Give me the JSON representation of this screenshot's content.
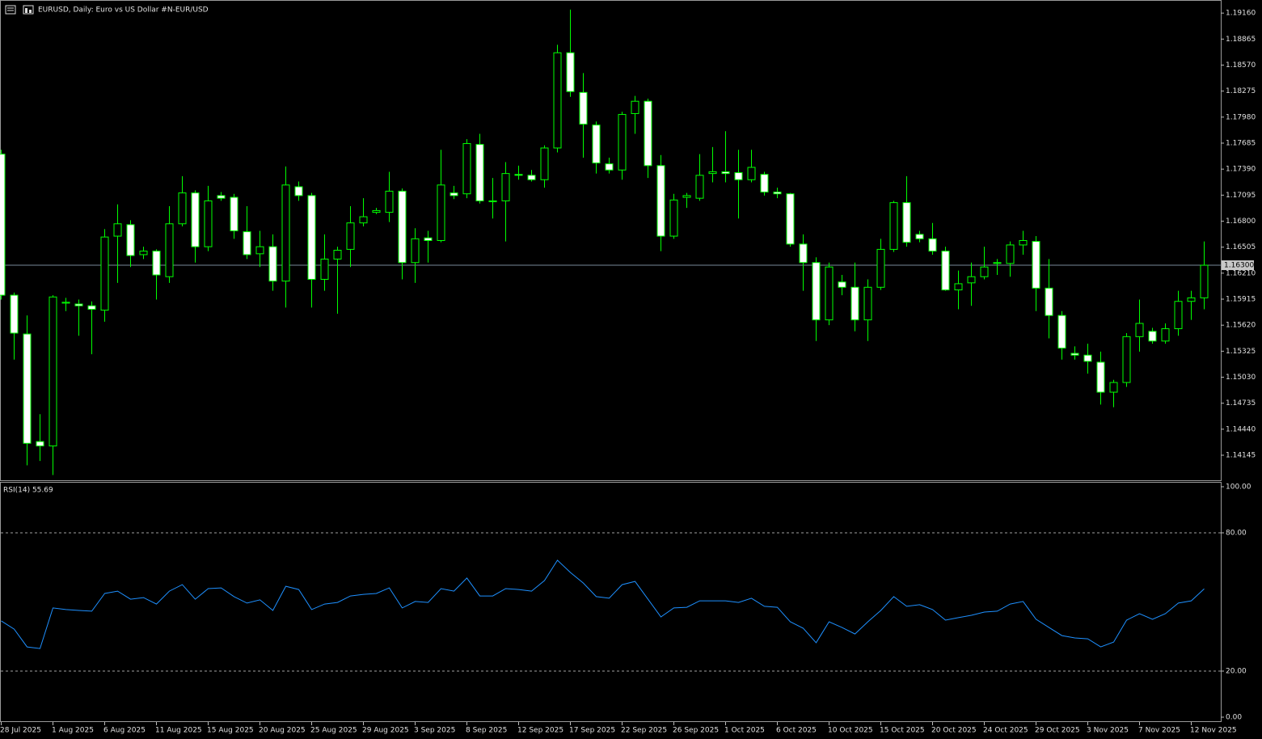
{
  "chart_data": [
    {
      "type": "candlestick",
      "title": "EURUSD, Daily:  Euro vs US Dollar #N-EUR/USD",
      "categories": [
        "28 Jul 2025",
        null,
        null,
        null,
        "1 Aug 2025",
        null,
        null,
        null,
        "6 Aug 2025",
        null,
        null,
        null,
        "11 Aug 2025",
        null,
        null,
        null,
        "15 Aug 2025",
        null,
        null,
        null,
        "20 Aug 2025",
        null,
        null,
        null,
        "25 Aug 2025",
        null,
        null,
        null,
        "29 Aug 2025",
        null,
        null,
        null,
        "3 Sep 2025",
        null,
        null,
        null,
        "8 Sep 2025",
        null,
        null,
        null,
        "12 Sep 2025",
        null,
        null,
        null,
        "17 Sep 2025",
        null,
        null,
        null,
        "22 Sep 2025",
        null,
        null,
        null,
        "26 Sep 2025",
        null,
        null,
        null,
        "1 Oct 2025",
        null,
        null,
        null,
        "6 Oct 2025",
        null,
        null,
        null,
        "10 Oct 2025",
        null,
        null,
        null,
        "15 Oct 2025",
        null,
        null,
        null,
        "20 Oct 2025",
        null,
        null,
        null,
        "24 Oct 2025",
        null,
        null,
        null,
        "29 Oct 2025",
        null,
        null,
        null,
        "3 Nov 2025",
        null,
        null,
        null,
        "7 Nov 2025",
        null,
        null,
        null,
        "12 Nov 2025",
        null
      ],
      "open": [
        1.1756,
        1.1596,
        1.1552,
        1.143,
        1.1425,
        1.1587,
        1.1586,
        1.1584,
        1.1579,
        1.1663,
        1.1676,
        1.1642,
        1.1646,
        1.1617,
        1.1677,
        1.1712,
        1.1651,
        1.1709,
        1.1707,
        1.1668,
        1.1643,
        1.1651,
        1.1612,
        1.1719,
        1.1709,
        1.1614,
        1.1637,
        1.1648,
        1.1678,
        1.169,
        1.169,
        1.1714,
        1.1633,
        1.1661,
        1.1658,
        1.1712,
        1.1711,
        1.1767,
        1.1702,
        1.1703,
        1.1733,
        1.1732,
        1.1727,
        1.1763,
        1.1871,
        1.1826,
        1.1789,
        1.1745,
        1.1738,
        1.1802,
        1.1816,
        1.1743,
        1.1663,
        1.1707,
        1.1706,
        1.1734,
        1.1736,
        1.1735,
        1.1727,
        1.1733,
        1.1713,
        1.1711,
        1.1654,
        1.1633,
        1.1568,
        1.1611,
        1.1605,
        1.1568,
        1.1605,
        1.1648,
        1.1701,
        1.1665,
        1.166,
        1.1646,
        1.1602,
        1.161,
        1.1617,
        1.1632,
        1.1632,
        1.1653,
        1.1657,
        1.1604,
        1.1573,
        1.153,
        1.1528,
        1.152,
        1.1486,
        1.1497,
        1.1549,
        1.1555,
        1.1544,
        1.1558,
        1.1589,
        1.1593
      ],
      "high": [
        1.1761,
        1.1599,
        1.1573,
        1.1461,
        1.1596,
        1.1593,
        1.1591,
        1.1589,
        1.1671,
        1.1699,
        1.1681,
        1.1651,
        1.1648,
        1.1697,
        1.1731,
        1.1715,
        1.172,
        1.1713,
        1.1711,
        1.1697,
        1.1669,
        1.1665,
        1.1742,
        1.1725,
        1.1712,
        1.1665,
        1.1651,
        1.1697,
        1.1706,
        1.1695,
        1.1736,
        1.1717,
        1.1672,
        1.1669,
        1.1761,
        1.172,
        1.1773,
        1.1779,
        1.1729,
        1.1747,
        1.1743,
        1.1738,
        1.1766,
        1.188,
        1.192,
        1.1848,
        1.1793,
        1.1752,
        1.1804,
        1.1822,
        1.1819,
        1.1755,
        1.1711,
        1.1712,
        1.1756,
        1.1764,
        1.1782,
        1.1761,
        1.1761,
        1.1736,
        1.1718,
        1.1712,
        1.1665,
        1.1639,
        1.1633,
        1.1619,
        1.1633,
        1.1614,
        1.166,
        1.1703,
        1.1731,
        1.1669,
        1.1678,
        1.1651,
        1.1624,
        1.1633,
        1.1651,
        1.1637,
        1.1657,
        1.1669,
        1.1663,
        1.1637,
        1.1578,
        1.1538,
        1.1541,
        1.1532,
        1.15,
        1.1553,
        1.1591,
        1.1559,
        1.1564,
        1.1601,
        1.1601,
        1.1657
      ],
      "low": [
        1.1591,
        1.1523,
        1.1403,
        1.1408,
        1.1392,
        1.1578,
        1.155,
        1.1529,
        1.1566,
        1.161,
        1.1628,
        1.1637,
        1.1591,
        1.161,
        1.1674,
        1.1633,
        1.1646,
        1.1703,
        1.166,
        1.1637,
        1.1628,
        1.1601,
        1.1582,
        1.1703,
        1.1582,
        1.1601,
        1.1575,
        1.1628,
        1.1674,
        1.1688,
        1.1679,
        1.1614,
        1.161,
        1.1633,
        1.1656,
        1.1705,
        1.1706,
        1.17,
        1.1683,
        1.1657,
        1.1727,
        1.1725,
        1.1718,
        1.1758,
        1.1821,
        1.1752,
        1.1734,
        1.1734,
        1.1727,
        1.1779,
        1.1729,
        1.1646,
        1.166,
        1.1695,
        1.1703,
        1.1724,
        1.1724,
        1.1683,
        1.1724,
        1.1709,
        1.1706,
        1.1651,
        1.1601,
        1.1544,
        1.1562,
        1.1596,
        1.1555,
        1.1544,
        1.1602,
        1.1645,
        1.1651,
        1.1656,
        1.1642,
        1.1601,
        1.158,
        1.1584,
        1.1614,
        1.1619,
        1.1617,
        1.1642,
        1.1578,
        1.1547,
        1.1523,
        1.1523,
        1.1507,
        1.1472,
        1.1469,
        1.1492,
        1.1532,
        1.1541,
        1.1541,
        1.155,
        1.1568,
        1.158
      ],
      "close": [
        1.1596,
        1.1553,
        1.1428,
        1.1425,
        1.1594,
        1.1588,
        1.1584,
        1.158,
        1.1662,
        1.1677,
        1.1641,
        1.1646,
        1.1619,
        1.1677,
        1.1712,
        1.1651,
        1.1703,
        1.1706,
        1.1669,
        1.1642,
        1.1651,
        1.1612,
        1.1721,
        1.1709,
        1.1614,
        1.1637,
        1.1647,
        1.1678,
        1.1685,
        1.1692,
        1.1714,
        1.1633,
        1.166,
        1.1658,
        1.1721,
        1.1709,
        1.1768,
        1.1703,
        1.1703,
        1.1734,
        1.1732,
        1.1727,
        1.1763,
        1.1871,
        1.1827,
        1.179,
        1.1746,
        1.1738,
        1.1801,
        1.1816,
        1.1743,
        1.1663,
        1.1704,
        1.1709,
        1.1732,
        1.1736,
        1.1734,
        1.1727,
        1.1741,
        1.1713,
        1.1711,
        1.1654,
        1.1633,
        1.1568,
        1.1628,
        1.1605,
        1.1568,
        1.1605,
        1.1648,
        1.1701,
        1.1656,
        1.166,
        1.1646,
        1.1602,
        1.1609,
        1.1617,
        1.1628,
        1.1633,
        1.1653,
        1.1658,
        1.1604,
        1.1573,
        1.1536,
        1.1528,
        1.1521,
        1.1486,
        1.1497,
        1.1549,
        1.1564,
        1.1544,
        1.1558,
        1.1589,
        1.1593,
        1.163
      ],
      "up_color": "#000000",
      "down_color": "#ffffff",
      "outline_color": "#00ff00",
      "ylim": [
        1.1387,
        1.1929
      ],
      "yticks": [
        {
          "value": 1.1916,
          "label": "1.19160"
        },
        1.18865,
        {
          "value": 1.1857,
          "label": "1.18570"
        },
        1.18275,
        {
          "value": 1.1798,
          "label": "1.17980"
        },
        1.17685,
        {
          "value": 1.1739,
          "label": "1.17390"
        },
        1.17095,
        {
          "value": 1.168,
          "label": "1.16800"
        },
        1.16505,
        {
          "value": 1.1621,
          "label": "1.16210"
        },
        1.15915,
        {
          "value": 1.1562,
          "label": "1.15620"
        },
        1.15325,
        {
          "value": 1.1503,
          "label": "1.15030"
        },
        1.14735,
        {
          "value": 1.1444,
          "label": "1.14440"
        },
        1.14145
      ],
      "current_price": {
        "value": 1.163,
        "label": "1.16300"
      }
    },
    {
      "type": "line",
      "title": "RSI(14) 55.69",
      "values": [
        41.8,
        38.2,
        30.5,
        29.8,
        47.4,
        46.7,
        46.3,
        46.0,
        53.7,
        54.7,
        51.2,
        51.9,
        49.1,
        54.7,
        57.5,
        51.2,
        55.8,
        56.1,
        52.3,
        49.5,
        50.9,
        46.3,
        56.8,
        55.4,
        46.7,
        49.1,
        49.8,
        52.6,
        53.3,
        53.7,
        56.1,
        47.4,
        50.2,
        49.8,
        55.8,
        54.7,
        60.4,
        52.6,
        52.6,
        55.8,
        55.4,
        54.7,
        59.3,
        68.1,
        62.8,
        58.2,
        52.3,
        51.6,
        57.5,
        58.9,
        51.2,
        43.5,
        47.4,
        47.7,
        50.5,
        50.5,
        50.5,
        49.8,
        51.6,
        48.1,
        47.7,
        41.4,
        38.6,
        32.3,
        41.4,
        38.9,
        36.1,
        41.4,
        46.3,
        52.3,
        48.1,
        48.8,
        46.7,
        42.1,
        43.2,
        44.2,
        45.6,
        46.0,
        49.1,
        50.2,
        42.5,
        38.9,
        35.4,
        34.4,
        34.0,
        30.5,
        32.6,
        42.1,
        44.9,
        42.5,
        44.9,
        49.5,
        50.5,
        55.69
      ],
      "color": "#1e90ff",
      "ylim": [
        0,
        100
      ],
      "yticks": [
        {
          "value": 100,
          "label": "100.00"
        },
        {
          "value": 80,
          "label": "80.00"
        },
        {
          "value": 20,
          "label": "20.00"
        },
        {
          "value": 0,
          "label": "0.00"
        }
      ],
      "levels": [
        80,
        20
      ]
    }
  ]
}
